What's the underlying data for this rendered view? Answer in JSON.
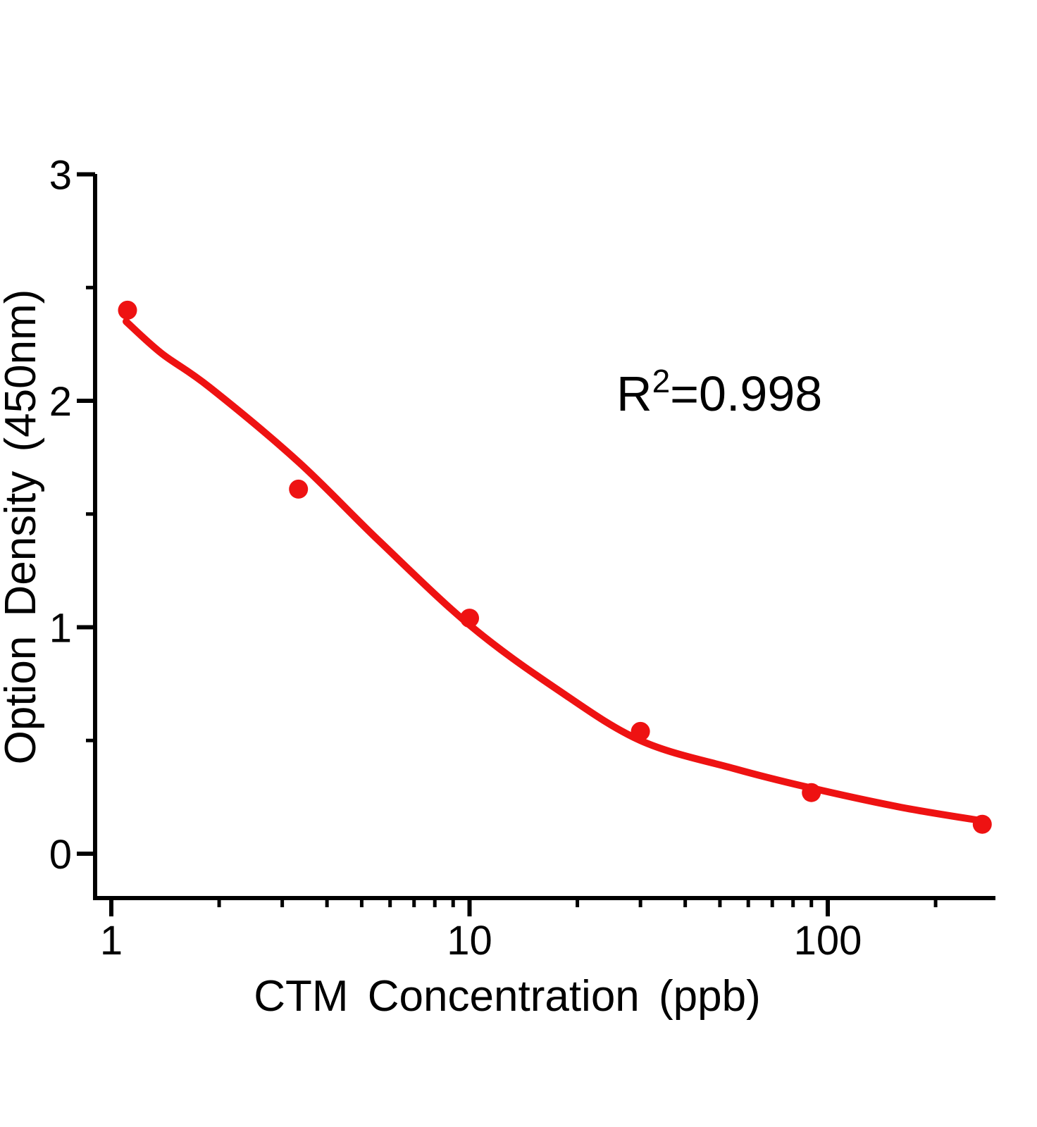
{
  "chart_data": {
    "type": "scatter",
    "title": "",
    "xlabel": "CTM Concentration (ppb)",
    "ylabel": "Option Density (450nm)",
    "x_scale": "log",
    "y_scale": "linear",
    "x_axis": {
      "range": [
        0.9,
        290
      ],
      "major_ticks": [
        1,
        10,
        100
      ],
      "tick_labels": [
        "1",
        "10",
        "100"
      ],
      "minor_ticks": [
        2,
        3,
        4,
        5,
        6,
        7,
        8,
        9,
        20,
        30,
        40,
        50,
        60,
        70,
        80,
        90,
        200
      ]
    },
    "y_axis": {
      "range": [
        -0.2,
        3
      ],
      "major_ticks": [
        0,
        1,
        2,
        3
      ],
      "tick_labels": [
        "0",
        "1",
        "2",
        "3"
      ],
      "minor_ticks": [
        0.5,
        1.5,
        2.5
      ]
    },
    "grid": false,
    "legend": "none",
    "annotation": {
      "text": "R²=0.998",
      "base": "R",
      "superscript": "2",
      "rest": "=0.998"
    },
    "r_squared": 0.998,
    "series": [
      {
        "name": "standard-points",
        "type": "scatter",
        "marker": "circle",
        "points": [
          [
            1.11,
            2.4
          ],
          [
            3.33,
            1.61
          ],
          [
            10,
            1.04
          ],
          [
            30,
            0.54
          ],
          [
            90,
            0.27
          ],
          [
            270,
            0.13
          ]
        ]
      },
      {
        "name": "fit-curve",
        "type": "line",
        "points": [
          [
            1.1,
            2.35
          ],
          [
            1.38,
            2.21
          ],
          [
            1.88,
            2.06
          ],
          [
            3.33,
            1.73
          ],
          [
            5.6,
            1.38
          ],
          [
            10,
            1.01
          ],
          [
            17.4,
            0.73
          ],
          [
            30,
            0.5
          ],
          [
            55,
            0.375
          ],
          [
            90,
            0.29
          ],
          [
            160,
            0.205
          ],
          [
            270,
            0.145
          ]
        ]
      }
    ],
    "colors": {
      "series": "#ee1212",
      "axis": "#000000",
      "text": "#000000",
      "background": "#ffffff"
    }
  }
}
